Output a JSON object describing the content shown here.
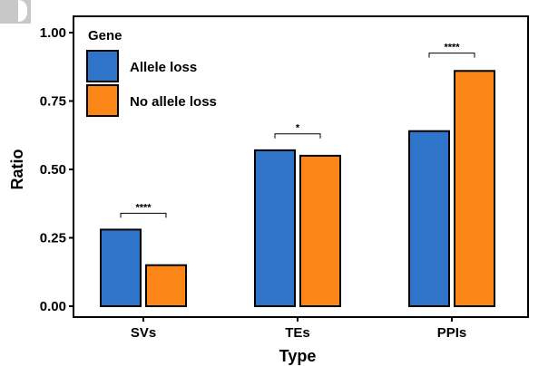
{
  "chart_data": {
    "type": "bar",
    "title": "",
    "xlabel": "Type",
    "ylabel": "Ratio",
    "categories": [
      "SVs",
      "TEs",
      "PPIs"
    ],
    "series": [
      {
        "name": "Allele loss",
        "color": "#2f74c9",
        "values": [
          0.28,
          0.57,
          0.64
        ]
      },
      {
        "name": "No allele loss",
        "color": "#fb8516",
        "values": [
          0.15,
          0.55,
          0.86
        ]
      }
    ],
    "ylim": [
      0,
      1.0
    ],
    "yticks": [
      0.0,
      0.25,
      0.5,
      0.75,
      1.0
    ],
    "ytick_labels": [
      "0.00",
      "0.25",
      "0.50",
      "0.75",
      "1.00"
    ],
    "legend": {
      "title": "Gene",
      "placement": "top-left"
    },
    "significance": [
      {
        "category": "SVs",
        "label": "****",
        "y": 0.34
      },
      {
        "category": "TEs",
        "label": "*",
        "y": 0.63
      },
      {
        "category": "PPIs",
        "label": "****",
        "y": 0.925
      }
    ]
  }
}
